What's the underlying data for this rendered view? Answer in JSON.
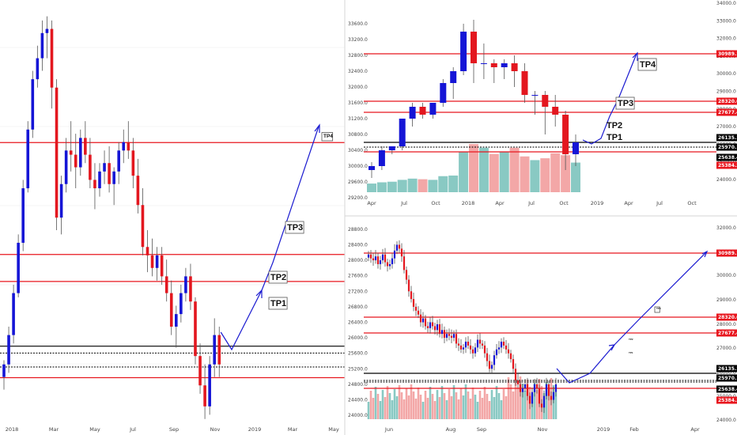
{
  "colors": {
    "up": "#1515d6",
    "down": "#e3171f",
    "level": "#e8161e",
    "blackLevel": "#000000",
    "arrow": "#1a1ad0",
    "volUp": "#89c9c3",
    "volDown": "#f3a7a7",
    "grid": "#eeeeee"
  },
  "chart_data": [
    {
      "type": "candlestick",
      "panel": "left",
      "ylim": [
        24300,
        34200
      ],
      "x_axis": [
        "2018",
        "Mar",
        "May",
        "Jul",
        "Sep",
        "Nov",
        "2019",
        "Mar",
        "May"
      ],
      "candles": [
        [
          25400,
          25800,
          25100,
          25700
        ],
        [
          25700,
          26600,
          25500,
          26400
        ],
        [
          26400,
          27600,
          26200,
          27400
        ],
        [
          27400,
          28800,
          27300,
          28600
        ],
        [
          28600,
          30100,
          28400,
          29900
        ],
        [
          29900,
          31500,
          29800,
          31300
        ],
        [
          31300,
          32700,
          31100,
          32500
        ],
        [
          32500,
          33300,
          32300,
          33000
        ],
        [
          33000,
          33900,
          32700,
          33600
        ],
        [
          33600,
          34000,
          33000,
          33700
        ],
        [
          33700,
          33900,
          31800,
          32300
        ],
        [
          32300,
          32500,
          28900,
          29200
        ],
        [
          29200,
          30200,
          28800,
          30000
        ],
        [
          30000,
          31100,
          29800,
          30800
        ],
        [
          30800,
          31500,
          30300,
          30700
        ],
        [
          30700,
          31200,
          29900,
          30400
        ],
        [
          30400,
          31300,
          30200,
          31100
        ],
        [
          31100,
          31500,
          30500,
          30700
        ],
        [
          30700,
          31100,
          29900,
          30100
        ],
        [
          30100,
          30500,
          29400,
          29900
        ],
        [
          29900,
          30500,
          29700,
          30300
        ],
        [
          30300,
          30800,
          30000,
          30500
        ],
        [
          30500,
          30900,
          29800,
          30000
        ],
        [
          30000,
          30400,
          29500,
          30300
        ],
        [
          30300,
          31000,
          30000,
          30800
        ],
        [
          30800,
          31300,
          30500,
          31000
        ],
        [
          31000,
          31500,
          30600,
          30800
        ],
        [
          30800,
          31100,
          29900,
          30200
        ],
        [
          30200,
          30600,
          29300,
          29500
        ],
        [
          29500,
          29900,
          28300,
          28500
        ],
        [
          28500,
          28900,
          27900,
          28300
        ],
        [
          28300,
          28700,
          27800,
          28000
        ],
        [
          28000,
          28500,
          27700,
          28300
        ],
        [
          28300,
          28500,
          27600,
          27800
        ],
        [
          27800,
          28200,
          27200,
          27400
        ],
        [
          27400,
          27700,
          26400,
          26600
        ],
        [
          26600,
          27100,
          26100,
          26900
        ],
        [
          26900,
          27600,
          26700,
          27400
        ],
        [
          27400,
          28000,
          27200,
          27800
        ],
        [
          27800,
          28100,
          27000,
          27200
        ],
        [
          27200,
          27300,
          25700,
          25900
        ],
        [
          25900,
          26200,
          25000,
          25200
        ],
        [
          25200,
          25700,
          24400,
          24700
        ],
        [
          24700,
          25900,
          24500,
          25700
        ],
        [
          25700,
          26800,
          25400,
          26400
        ],
        [
          26400,
          26600,
          25400,
          25700
        ]
      ]
    },
    {
      "type": "candlestick",
      "panel": "top-right",
      "ylim": [
        29200,
        33800
      ],
      "x_axis": [
        "Apr",
        "Jul",
        "Oct",
        "2018",
        "Apr",
        "Jul",
        "Oct",
        "2019",
        "Apr",
        "Jul",
        "Oct"
      ],
      "candles": [
        [
          29900,
          30100,
          29700,
          30000
        ],
        [
          30000,
          30500,
          29900,
          30400
        ],
        [
          30400,
          30500,
          30300,
          30500
        ],
        [
          30500,
          31200,
          30400,
          31200
        ],
        [
          31200,
          31600,
          31000,
          31500
        ],
        [
          31500,
          31600,
          31200,
          31300
        ],
        [
          31300,
          31600,
          31200,
          31600
        ],
        [
          31600,
          32200,
          31500,
          32100
        ],
        [
          32100,
          32500,
          31700,
          32400
        ],
        [
          32400,
          33600,
          32300,
          33400
        ],
        [
          33400,
          33700,
          32100,
          32600
        ],
        [
          32600,
          33100,
          32200,
          32600
        ],
        [
          32600,
          32700,
          32100,
          32500
        ],
        [
          32500,
          32700,
          32200,
          32600
        ],
        [
          32600,
          32800,
          32000,
          32400
        ],
        [
          32400,
          32600,
          31600,
          31800
        ],
        [
          31800,
          31900,
          31300,
          31800
        ],
        [
          31800,
          31900,
          30800,
          31500
        ],
        [
          31500,
          31800,
          31000,
          31300
        ],
        [
          31300,
          31400,
          29900,
          30300
        ],
        [
          30300,
          30800,
          30000,
          30600
        ]
      ],
      "volumes": [
        0.14,
        0.16,
        0.17,
        0.2,
        0.22,
        0.21,
        0.2,
        0.26,
        0.27,
        0.65,
        0.78,
        0.72,
        0.62,
        0.66,
        0.72,
        0.58,
        0.52,
        0.55,
        0.63,
        0.6,
        0.48
      ]
    },
    {
      "type": "candlestick",
      "panel": "bottom-right",
      "ylim": [
        23900,
        28900
      ],
      "x_axis": [
        "Jun",
        "Aug",
        "Sep",
        "Nov",
        "2019",
        "Feb",
        "Apr"
      ],
      "closes": [
        28150,
        28050,
        28000,
        28100,
        27900,
        28000,
        28150,
        27950,
        27850,
        27900,
        28050,
        28250,
        28400,
        28300,
        28100,
        27750,
        27500,
        27200,
        27000,
        26800,
        26700,
        26600,
        26400,
        26500,
        26300,
        26250,
        26400,
        26300,
        26200,
        26350,
        26100,
        26200,
        26000,
        26100,
        26050,
        26000,
        26100,
        25850,
        25800,
        25700,
        25750,
        25900,
        25800,
        25700,
        25600,
        25750,
        25950,
        25850,
        25800,
        25600,
        25400,
        25200,
        25300,
        25550,
        25700,
        25750,
        25900,
        25800,
        25700,
        25600,
        25450,
        25200,
        24900,
        24800,
        24600,
        24700,
        24800,
        24500,
        24300,
        24600,
        24800,
        24700,
        24300,
        24200,
        24500,
        24800,
        24500,
        24400,
        24600,
        24800
      ]
    }
  ],
  "levels": [
    {
      "value": "30989.1",
      "kind": "red"
    },
    {
      "value": "28320.6",
      "kind": "red"
    },
    {
      "value": "27677.4",
      "kind": "red"
    },
    {
      "value": "26135.1",
      "kind": "black"
    },
    {
      "value": "25970.1",
      "kind": "dotted"
    },
    {
      "value": "25638.4",
      "kind": "dotted"
    },
    {
      "value": "25384.3",
      "kind": "red"
    }
  ],
  "targets": [
    "TP1",
    "TP2",
    "TP3",
    "TP4"
  ],
  "right_axes": {
    "top_ticks": [
      "34000.0",
      "33000.0",
      "32000.0",
      "31000.0",
      "30000.0",
      "29000.0",
      "28000.0",
      "27000.0",
      "26000.0",
      "25000.0",
      "24000.0"
    ],
    "bottom_ticks": [
      "32000.0",
      "31000.0",
      "30000.0",
      "29000.0",
      "28000.0",
      "27000.0",
      "26000.0",
      "25000.0",
      "24000.0"
    ]
  }
}
